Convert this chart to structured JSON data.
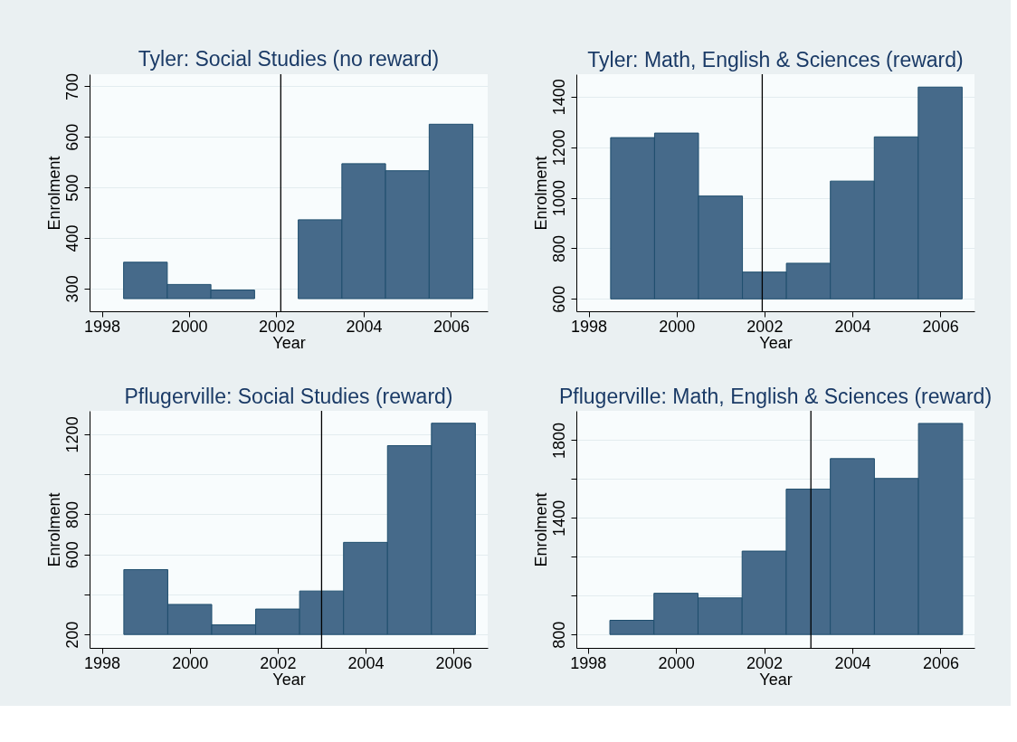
{
  "chart_data": [
    {
      "type": "bar",
      "title": "Tyler: Social Studies (no reward)",
      "xlabel": "Year",
      "ylabel": "Enrolment",
      "x": [
        1999,
        2000,
        2001,
        2002,
        2003,
        2004,
        2005,
        2006
      ],
      "base": [
        280,
        280,
        280,
        null,
        280,
        280,
        280,
        280
      ],
      "values": [
        72,
        28,
        17,
        null,
        156,
        267,
        253,
        345
      ],
      "color": "#466a8a",
      "xlim": [
        1997.72,
        2006.84
      ],
      "xticks": [
        1998,
        2000,
        2002,
        2004,
        2006
      ],
      "ylim": [
        255,
        724
      ],
      "yticks": [
        300,
        400,
        500,
        600,
        700
      ],
      "ref_lines": [
        {
          "axis": "x",
          "value": 2002.1,
          "color": "#000000"
        }
      ],
      "grid": "y"
    },
    {
      "type": "bar",
      "title": "Tyler: Math, English & Sciences (reward)",
      "xlabel": "Year",
      "ylabel": "Enrolment",
      "x": [
        1999,
        2000,
        2001,
        2002,
        2003,
        2004,
        2005,
        2006
      ],
      "base": [
        600,
        600,
        600,
        600,
        600,
        600,
        600,
        600
      ],
      "values": [
        638,
        656,
        407,
        106,
        141,
        466,
        641,
        838
      ],
      "color": "#466a8a",
      "xlim": [
        1997.72,
        2006.78
      ],
      "xticks": [
        1998,
        2000,
        2002,
        2004,
        2006
      ],
      "ylim": [
        551,
        1489
      ],
      "yticks": [
        600,
        800,
        1000,
        1200,
        1400
      ],
      "ref_lines": [
        {
          "axis": "x",
          "value": 2001.95,
          "color": "#000000"
        }
      ],
      "grid": "y"
    },
    {
      "type": "bar",
      "title": "Pflugerville: Social Studies (reward)",
      "xlabel": "Year",
      "ylabel": "Enrolment",
      "x": [
        1999,
        2000,
        2001,
        2002,
        2003,
        2004,
        2005,
        2006
      ],
      "base": [
        200,
        200,
        200,
        200,
        200,
        200,
        200,
        200
      ],
      "values": [
        324,
        150,
        48,
        127,
        217,
        460,
        943,
        1055
      ],
      "color": "#466a8a",
      "xlim": [
        1997.72,
        2006.78
      ],
      "xticks": [
        1998,
        2000,
        2002,
        2004,
        2006
      ],
      "ylim": [
        133,
        1317
      ],
      "yticks": [
        200,
        {
          "value": 400,
          "label": null
        },
        600,
        800,
        {
          "value": 1000,
          "label": null
        },
        1200
      ],
      "ref_lines": [
        {
          "axis": "x",
          "value": 2003.0,
          "color": "#000000"
        }
      ],
      "grid": "y"
    },
    {
      "type": "bar",
      "title": "Pflugerville: Math, English & Sciences (reward)",
      "xlabel": "Year",
      "ylabel": "Enrolment",
      "x": [
        1999,
        2000,
        2001,
        2002,
        2003,
        2004,
        2005,
        2006
      ],
      "base": [
        800,
        800,
        800,
        800,
        800,
        800,
        800,
        800
      ],
      "values": [
        73,
        212,
        188,
        429,
        748,
        905,
        803,
        1086
      ],
      "color": "#466a8a",
      "xlim": [
        1997.74,
        2006.77
      ],
      "xticks": [
        1998,
        2000,
        2002,
        2004,
        2006
      ],
      "ylim": [
        731,
        1951
      ],
      "yticks": [
        800,
        {
          "value": 1000,
          "label": null
        },
        {
          "value": 1200,
          "label": null
        },
        1400,
        {
          "value": 1600,
          "label": null
        },
        1800
      ],
      "ref_lines": [
        {
          "axis": "x",
          "value": 2003.06,
          "color": "#000000"
        }
      ],
      "grid": "y"
    }
  ]
}
